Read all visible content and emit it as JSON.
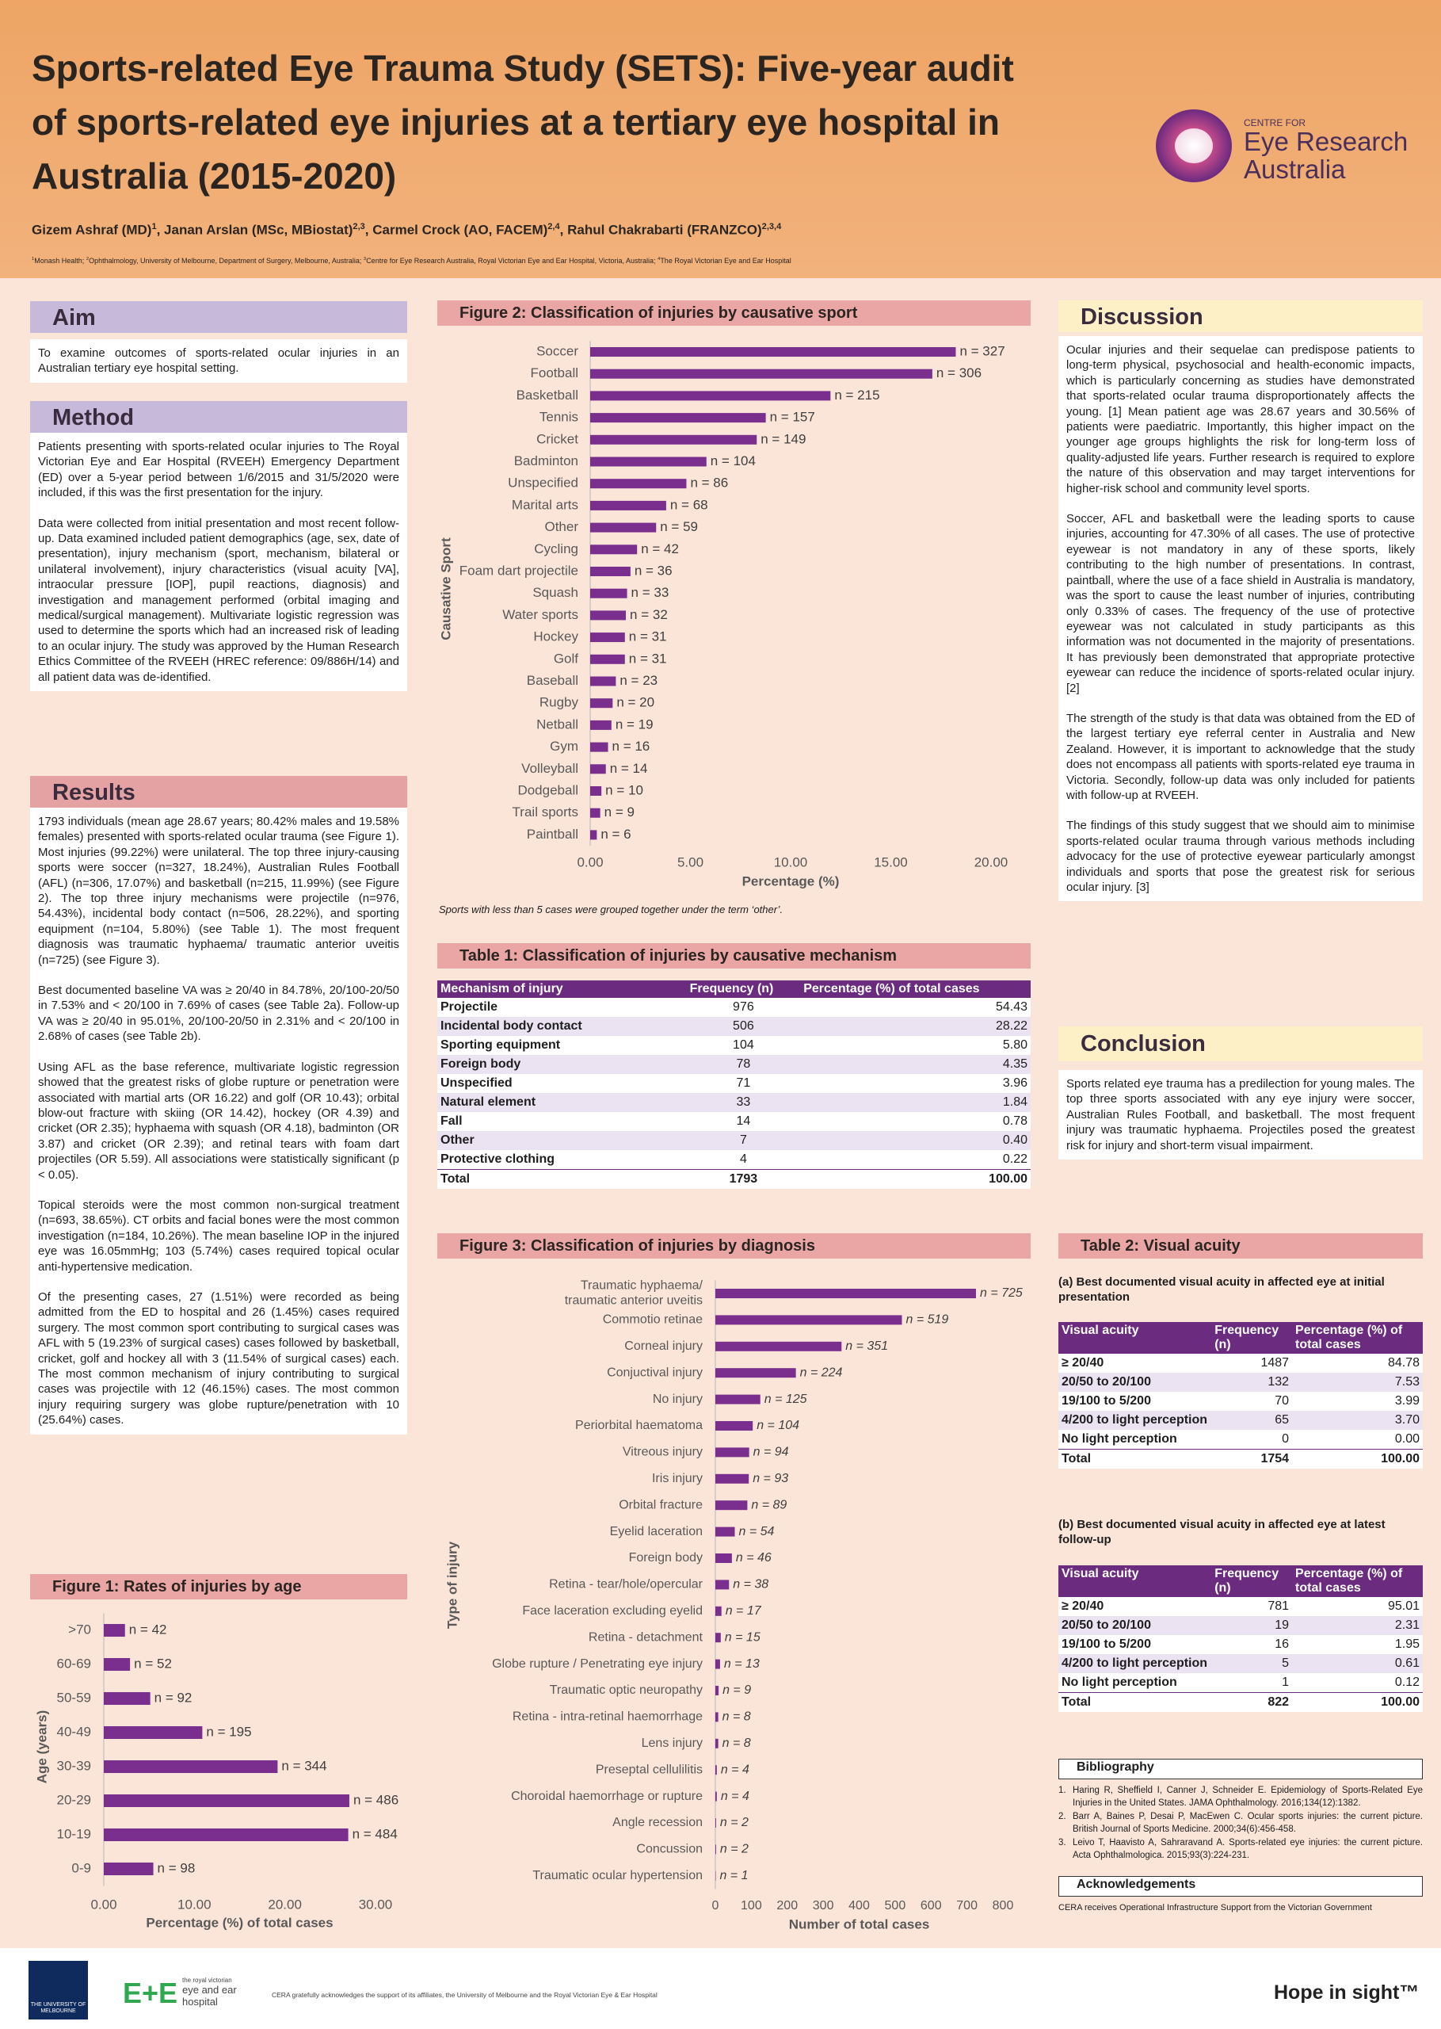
{
  "header": {
    "title": [
      "Sports-related Eye Trauma Study (SETS): Five-year audit",
      "of sports-related eye injuries at a tertiary eye hospital in",
      "Australia (2015-2020)"
    ],
    "authors": [
      {
        "text": "Gizem Ashraf (MD)"
      },
      {
        "sup": "1"
      },
      {
        "text": ", Janan Arslan (MSc, MBiostat)"
      },
      {
        "sup": "2,3"
      },
      {
        "text": ", Carmel Crock (AO, FACEM)"
      },
      {
        "sup": "2,4"
      },
      {
        "text": ", Rahul Chakrabarti (FRANZCO)"
      },
      {
        "sup": "2,3,4"
      }
    ],
    "affiliations": [
      {
        "sup": "1"
      },
      {
        "text": "Monash Health; "
      },
      {
        "sup": "2"
      },
      {
        "text": "Ophthalmology, University of Melbourne, Department of Surgery, Melbourne, Australia; "
      },
      {
        "sup": "3"
      },
      {
        "text": "Centre for Eye Research Australia, Royal Victorian Eye and Ear Hospital, Victoria, Australia; "
      },
      {
        "sup": "4"
      },
      {
        "text": "The Royal Victorian Eye and Ear Hospital"
      }
    ],
    "logo": {
      "line1": "CENTRE FOR",
      "line2": "Eye Research",
      "line3": "Australia"
    }
  },
  "aim": {
    "heading": "Aim",
    "text": "To examine outcomes of sports-related ocular injuries in an Australian tertiary eye hospital setting."
  },
  "method": {
    "heading": "Method",
    "paragraphs": [
      "Patients presenting with sports-related ocular injuries to The Royal Victorian Eye and Ear Hospital (RVEEH) Emergency Department (ED) over a 5-year period between 1/6/2015 and 31/5/2020 were included, if this was the first presentation for the injury.",
      "Data were collected from initial presentation and most recent follow-up. Data examined included patient demographics (age, sex, date of presentation), injury mechanism (sport, mechanism, bilateral or unilateral involvement), injury characteristics (visual acuity [VA], intraocular pressure [IOP], pupil reactions, diagnosis) and investigation and management performed (orbital imaging and medical/surgical management). Multivariate logistic regression was used to determine the sports which had an increased risk of leading to an ocular injury. The study was approved by the Human Research Ethics Committee of the RVEEH (HREC reference: 09/886H/14) and all patient data was de-identified."
    ]
  },
  "results": {
    "heading": "Results",
    "paragraphs": [
      "1793 individuals (mean age 28.67 years; 80.42% males and 19.58% females) presented with sports-related ocular trauma (see Figure 1). Most injuries (99.22%) were unilateral. The top three injury-causing sports were soccer (n=327, 18.24%), Australian Rules Football (AFL) (n=306, 17.07%) and basketball (n=215, 11.99%) (see Figure 2). The top three injury mechanisms were projectile (n=976, 54.43%), incidental body contact (n=506, 28.22%), and sporting equipment (n=104, 5.80%) (see Table 1). The most frequent diagnosis was traumatic hyphaema/ traumatic anterior uveitis (n=725) (see Figure 3).",
      "Best documented baseline VA was ≥ 20/40 in 84.78%, 20/100-20/50 in 7.53% and < 20/100 in 7.69% of cases (see Table 2a). Follow-up VA was ≥ 20/40 in 95.01%, 20/100-20/50 in 2.31% and < 20/100 in 2.68% of cases (see Table 2b).",
      "Using AFL as the base reference, multivariate logistic regression showed that the greatest risks of globe rupture or penetration were associated with martial arts (OR 16.22) and golf (OR 10.43); orbital blow-out fracture with skiing (OR 14.42), hockey (OR 4.39) and cricket (OR 2.35); hyphaema with squash (OR 4.18), badminton (OR 3.87) and cricket (OR 2.39); and retinal tears with foam dart projectiles (OR 5.59). All associations were statistically significant (p < 0.05).",
      "Topical steroids were the most common non-surgical treatment (n=693, 38.65%). CT orbits and facial bones were the most common investigation (n=184, 10.26%). The mean baseline IOP in the injured eye was 16.05mmHg; 103 (5.74%) cases required topical ocular anti-hypertensive medication.",
      "Of the presenting cases, 27 (1.51%) were recorded as being admitted from the ED to hospital and 26 (1.45%) cases required surgery. The most common sport contributing to surgical cases was AFL with 5 (19.23% of surgical cases) cases followed by basketball, cricket, golf and hockey all with 3 (11.54% of surgical cases) each. The most common mechanism of injury contributing to surgical cases was projectile with 12 (46.15%) cases. The most common injury requiring surgery was globe rupture/penetration with 10 (25.64%) cases."
    ]
  },
  "discussion": {
    "heading": "Discussion",
    "paragraphs": [
      "Ocular injuries and their sequelae can predispose patients to long-term physical, psychosocial and health-economic impacts, which is particularly concerning as studies have demonstrated that sports-related ocular trauma disproportionately affects the young. [1] Mean patient age was 28.67 years and 30.56% of patients were paediatric. Importantly, this higher impact on the younger age groups highlights the risk for long-term loss of quality-adjusted life years. Further research is required to explore the nature of this observation and may target interventions for higher-risk school and community level sports.",
      "Soccer, AFL and basketball were the leading sports to cause injuries, accounting for 47.30% of all cases. The use of protective eyewear is not mandatory in any of these sports, likely contributing to the high number of presentations. In contrast, paintball, where the use of a face shield in Australia is mandatory, was the sport to cause the least number of injuries, contributing only 0.33% of cases. The frequency of the use of protective eyewear was not calculated in study participants as this information was not documented in the majority of presentations. It has previously been demonstrated that appropriate protective eyewear can reduce the incidence of sports-related ocular injury. [2]",
      "The strength of the study is that data was obtained from the ED of the largest tertiary eye referral center in Australia and New Zealand. However, it is important to acknowledge that the study does not encompass all patients with sports-related eye trauma in Victoria. Secondly, follow-up data was only included for patients with follow-up at RVEEH.",
      "The findings of this study suggest that we should aim to minimise sports-related ocular trauma through various methods including advocacy for the use of protective eyewear particularly amongst individuals and sports that pose the greatest risk for serious ocular injury. [3]"
    ]
  },
  "conclusion": {
    "heading": "Conclusion",
    "text": "Sports related eye trauma has a predilection for young males. The top three sports associated with any eye injury were soccer, Australian Rules Football, and basketball. The most frequent injury was traumatic hyphaema. Projectiles posed the greatest risk for injury and short-term visual impairment."
  },
  "table1": {
    "title": "Table 1: Classification of injuries by causative mechanism",
    "columns": [
      "Mechanism of injury",
      "Frequency (n)",
      "Percentage (%) of total cases"
    ],
    "rows": [
      [
        "Projectile",
        "976",
        "54.43"
      ],
      [
        "Incidental body contact",
        "506",
        "28.22"
      ],
      [
        "Sporting equipment",
        "104",
        "5.80"
      ],
      [
        "Foreign body",
        "78",
        "4.35"
      ],
      [
        "Unspecified",
        "71",
        "3.96"
      ],
      [
        "Natural element",
        "33",
        "1.84"
      ],
      [
        "Fall",
        "14",
        "0.78"
      ],
      [
        "Other",
        "7",
        "0.40"
      ],
      [
        "Protective clothing",
        "4",
        "0.22"
      ],
      [
        "Total",
        "1793",
        "100.00"
      ]
    ]
  },
  "table2": {
    "title": "Table 2: Visual acuity",
    "parts": [
      {
        "caption": "(a) Best documented visual acuity in affected eye at initial presentation",
        "columns": [
          "Visual acuity",
          "Frequency (n)",
          "Percentage (%) of total cases"
        ],
        "rows": [
          [
            "≥ 20/40",
            "1487",
            "84.78"
          ],
          [
            "20/50 to 20/100",
            "132",
            "7.53"
          ],
          [
            "19/100 to 5/200",
            "70",
            "3.99"
          ],
          [
            "4/200 to light perception",
            "65",
            "3.70"
          ],
          [
            "No light perception",
            "0",
            "0.00"
          ],
          [
            "Total",
            "1754",
            "100.00"
          ]
        ]
      },
      {
        "caption": "(b) Best documented visual acuity in affected eye at latest follow-up",
        "columns": [
          "Visual acuity",
          "Frequency (n)",
          "Percentage (%) of total cases"
        ],
        "rows": [
          [
            "≥ 20/40",
            "781",
            "95.01"
          ],
          [
            "20/50 to 20/100",
            "19",
            "2.31"
          ],
          [
            "19/100 to 5/200",
            "16",
            "1.95"
          ],
          [
            "4/200 to light perception",
            "5",
            "0.61"
          ],
          [
            "No light perception",
            "1",
            "0.12"
          ],
          [
            "Total",
            "822",
            "100.00"
          ]
        ]
      }
    ]
  },
  "bibliography": {
    "heading": "Bibliography",
    "items": [
      {
        "n": "1.",
        "text": "Haring R, Sheffield I, Canner J, Schneider E. Epidemiology of Sports-Related Eye Injuries in the United States. JAMA Ophthalmology. 2016;134(12):1382."
      },
      {
        "n": "2.",
        "text": "Barr A, Baines P, Desai P, MacEwen C. Ocular sports injuries: the current picture. British Journal of Sports Medicine. 2000;34(6):456-458."
      },
      {
        "n": "3.",
        "text": "Leivo T, Haavisto A, Sahraravand A. Sports-related eye injuries: the current picture. Acta Ophthalmologica. 2015;93(3):224-231."
      }
    ]
  },
  "acknowledgements": {
    "heading": "Acknowledgements",
    "text": "CERA receives Operational Infrastructure Support from the Victorian Government"
  },
  "footer": {
    "melbourne": "THE UNIVERSITY OF MELBOURNE",
    "rveeh_mark": "E+E",
    "rveeh": [
      "the royal victorian",
      "eye and ear",
      "hospital"
    ],
    "note": "CERA gratefully acknowledges the support of its affiliates, the University of Melbourne and the Royal Victorian Eye & Ear Hospital",
    "tagline": "Hope in sight™"
  },
  "chart_data": [
    {
      "type": "bar",
      "orientation": "horizontal",
      "title": "Figure 1: Rates of injuries by age",
      "categories": [
        ">70",
        "60-69",
        "50-59",
        "40-49",
        "30-39",
        "20-29",
        "10-19",
        "0-9"
      ],
      "values": [
        2.34,
        2.9,
        5.13,
        10.88,
        19.19,
        27.11,
        26.99,
        5.47
      ],
      "n_labels": [
        "n = 42",
        "n = 52",
        "n = 92",
        "n = 195",
        "n = 344",
        "n = 486",
        "n = 484",
        "n = 98"
      ],
      "color": "#7a2e8e",
      "xlim": [
        0,
        30
      ],
      "xticks": [
        {
          "value": 0,
          "label": "0.00"
        },
        {
          "value": 10,
          "label": "10.00"
        },
        {
          "value": 20,
          "label": "20.00"
        },
        {
          "value": 30,
          "label": "30.00"
        }
      ],
      "xlabel": "Percentage (%) of total cases",
      "ylabel": "Age (years)"
    },
    {
      "type": "bar",
      "orientation": "horizontal",
      "title": "Figure 2: Classification of injuries by causative sport",
      "categories": [
        "Soccer",
        "Football",
        "Basketball",
        "Tennis",
        "Cricket",
        "Badminton",
        "Unspecified",
        "Marital arts",
        "Other",
        "Cycling",
        "Foam dart projectile",
        "Squash",
        "Water sports",
        "Hockey",
        "Golf",
        "Baseball",
        "Rugby",
        "Netball",
        "Gym",
        "Volleyball",
        "Dodgeball",
        "Trail sports",
        "Paintball"
      ],
      "values": [
        18.24,
        17.07,
        11.99,
        8.76,
        8.31,
        5.8,
        4.8,
        3.79,
        3.29,
        2.34,
        2.01,
        1.84,
        1.78,
        1.73,
        1.73,
        1.28,
        1.12,
        1.06,
        0.89,
        0.78,
        0.56,
        0.5,
        0.33
      ],
      "n_labels": [
        "n = 327",
        "n = 306",
        "n = 215",
        "n = 157",
        "n = 149",
        "n = 104",
        "n = 86",
        "n = 68",
        "n = 59",
        "n = 42",
        "n = 36",
        "n = 33",
        "n = 32",
        "n = 31",
        "n = 31",
        "n = 23",
        "n = 20",
        "n = 19",
        "n = 16",
        "n = 14",
        "n = 10",
        "n = 9",
        "n = 6"
      ],
      "color": "#7a2e8e",
      "xlim": [
        0,
        20
      ],
      "xticks": [
        {
          "value": 0,
          "label": "0.00"
        },
        {
          "value": 5,
          "label": "5.00"
        },
        {
          "value": 10,
          "label": "10.00"
        },
        {
          "value": 15,
          "label": "15.00"
        },
        {
          "value": 20,
          "label": "20.00"
        }
      ],
      "xlabel": "Percentage (%)",
      "ylabel": "Causative Sport",
      "note": "Sports with less than 5 cases were grouped together under the term ‘other’."
    },
    {
      "type": "bar",
      "orientation": "horizontal",
      "title": "Figure 3: Classification of injuries by diagnosis",
      "categories": [
        "Traumatic hyphaema/ traumatic anterior uveitis",
        "Commotio retinae",
        "Corneal injury",
        "Conjuctival injury",
        "No injury",
        "Periorbital haematoma",
        "Vitreous injury",
        "Iris injury",
        "Orbital fracture",
        "Eyelid laceration",
        "Foreign body",
        "Retina - tear/hole/opercular",
        "Face laceration excluding eyelid",
        "Retina - detachment",
        "Globe rupture / Penetrating eye injury",
        "Traumatic optic neuropathy",
        "Retina - intra-retinal haemorrhage",
        "Lens injury",
        "Preseptal cellulilitis",
        "Choroidal haemorrhage or rupture",
        "Angle recession",
        "Concussion",
        "Traumatic ocular hypertension"
      ],
      "values": [
        725,
        519,
        351,
        224,
        125,
        104,
        94,
        93,
        89,
        54,
        46,
        38,
        17,
        15,
        13,
        9,
        8,
        8,
        4,
        4,
        2,
        2,
        1
      ],
      "value_labels": [
        "n = 725",
        "n = 519",
        "n = 351",
        "n = 224",
        "n = 125",
        "n = 104",
        "n = 94",
        "n = 93",
        "n = 89",
        "n = 54",
        "n = 46",
        "n = 38",
        "n = 17",
        "n = 15",
        "n = 13",
        "n = 9",
        "n = 8",
        "n = 8",
        "n = 4",
        "n = 4",
        "n = 2",
        "n = 2",
        "n = 1"
      ],
      "color": "#7a2e8e",
      "xlim": [
        0,
        800
      ],
      "xticks": [
        0,
        100,
        200,
        300,
        400,
        500,
        600,
        700,
        800
      ],
      "xlabel": "Number of total cases",
      "ylabel": "Type of injury"
    }
  ]
}
